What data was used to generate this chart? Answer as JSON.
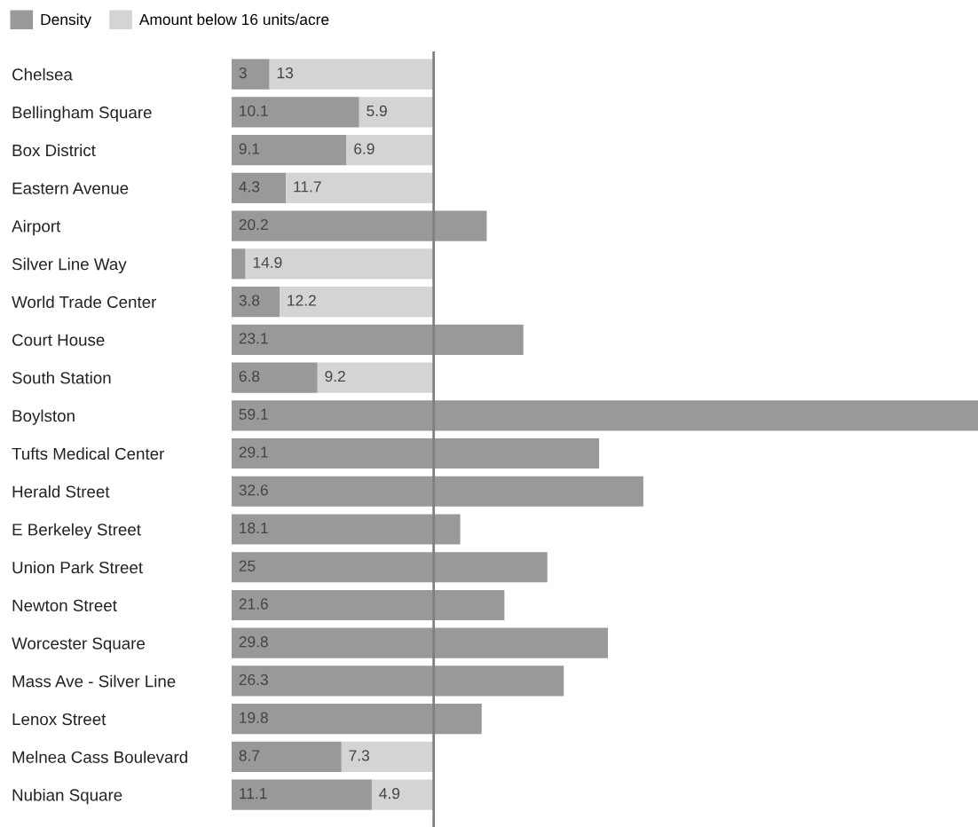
{
  "chart_data": {
    "type": "bar",
    "orientation": "horizontal",
    "stacked": true,
    "legend": "top left",
    "categories": [
      "Chelsea",
      "Bellingham Square",
      "Box District",
      "Eastern Avenue",
      "Airport",
      "Silver Line Way",
      "World Trade Center",
      "Court House",
      "South Station",
      "Boylston",
      "Tufts Medical Center",
      "Herald Street",
      "E Berkeley Street",
      "Union Park Street",
      "Newton Street",
      "Worcester Square",
      "Mass Ave - Silver Line",
      "Lenox Street",
      "Melnea Cass Boulevard",
      "Nubian Square"
    ],
    "series": [
      {
        "name": "Density",
        "color": "#999999",
        "values": [
          3,
          10.1,
          9.1,
          4.3,
          20.2,
          1.1,
          3.8,
          23.1,
          6.8,
          59.1,
          29.1,
          32.6,
          18.1,
          25,
          21.6,
          29.8,
          26.3,
          19.8,
          8.7,
          11.1
        ],
        "value_labels": [
          "3",
          "10.1",
          "9.1",
          "4.3",
          "20.2",
          null,
          "3.8",
          "23.1",
          "6.8",
          "59.1",
          "29.1",
          "32.6",
          "18.1",
          "25",
          "21.6",
          "29.8",
          "26.3",
          "19.8",
          "8.7",
          "11.1"
        ]
      },
      {
        "name": "Amount below 16 units/acre",
        "color": "#d4d4d4",
        "values": [
          13,
          5.9,
          6.9,
          11.7,
          null,
          14.9,
          12.2,
          null,
          9.2,
          null,
          null,
          null,
          null,
          null,
          null,
          null,
          null,
          null,
          7.3,
          4.9
        ],
        "value_labels": [
          "13",
          "5.9",
          "6.9",
          "11.7",
          null,
          "14.9",
          "12.2",
          null,
          "9.2",
          null,
          null,
          null,
          null,
          null,
          null,
          null,
          null,
          null,
          "7.3",
          "4.9"
        ]
      }
    ],
    "ref_lines": [
      {
        "axis": "x",
        "value": 16,
        "color": "#7f7f7f"
      }
    ]
  }
}
